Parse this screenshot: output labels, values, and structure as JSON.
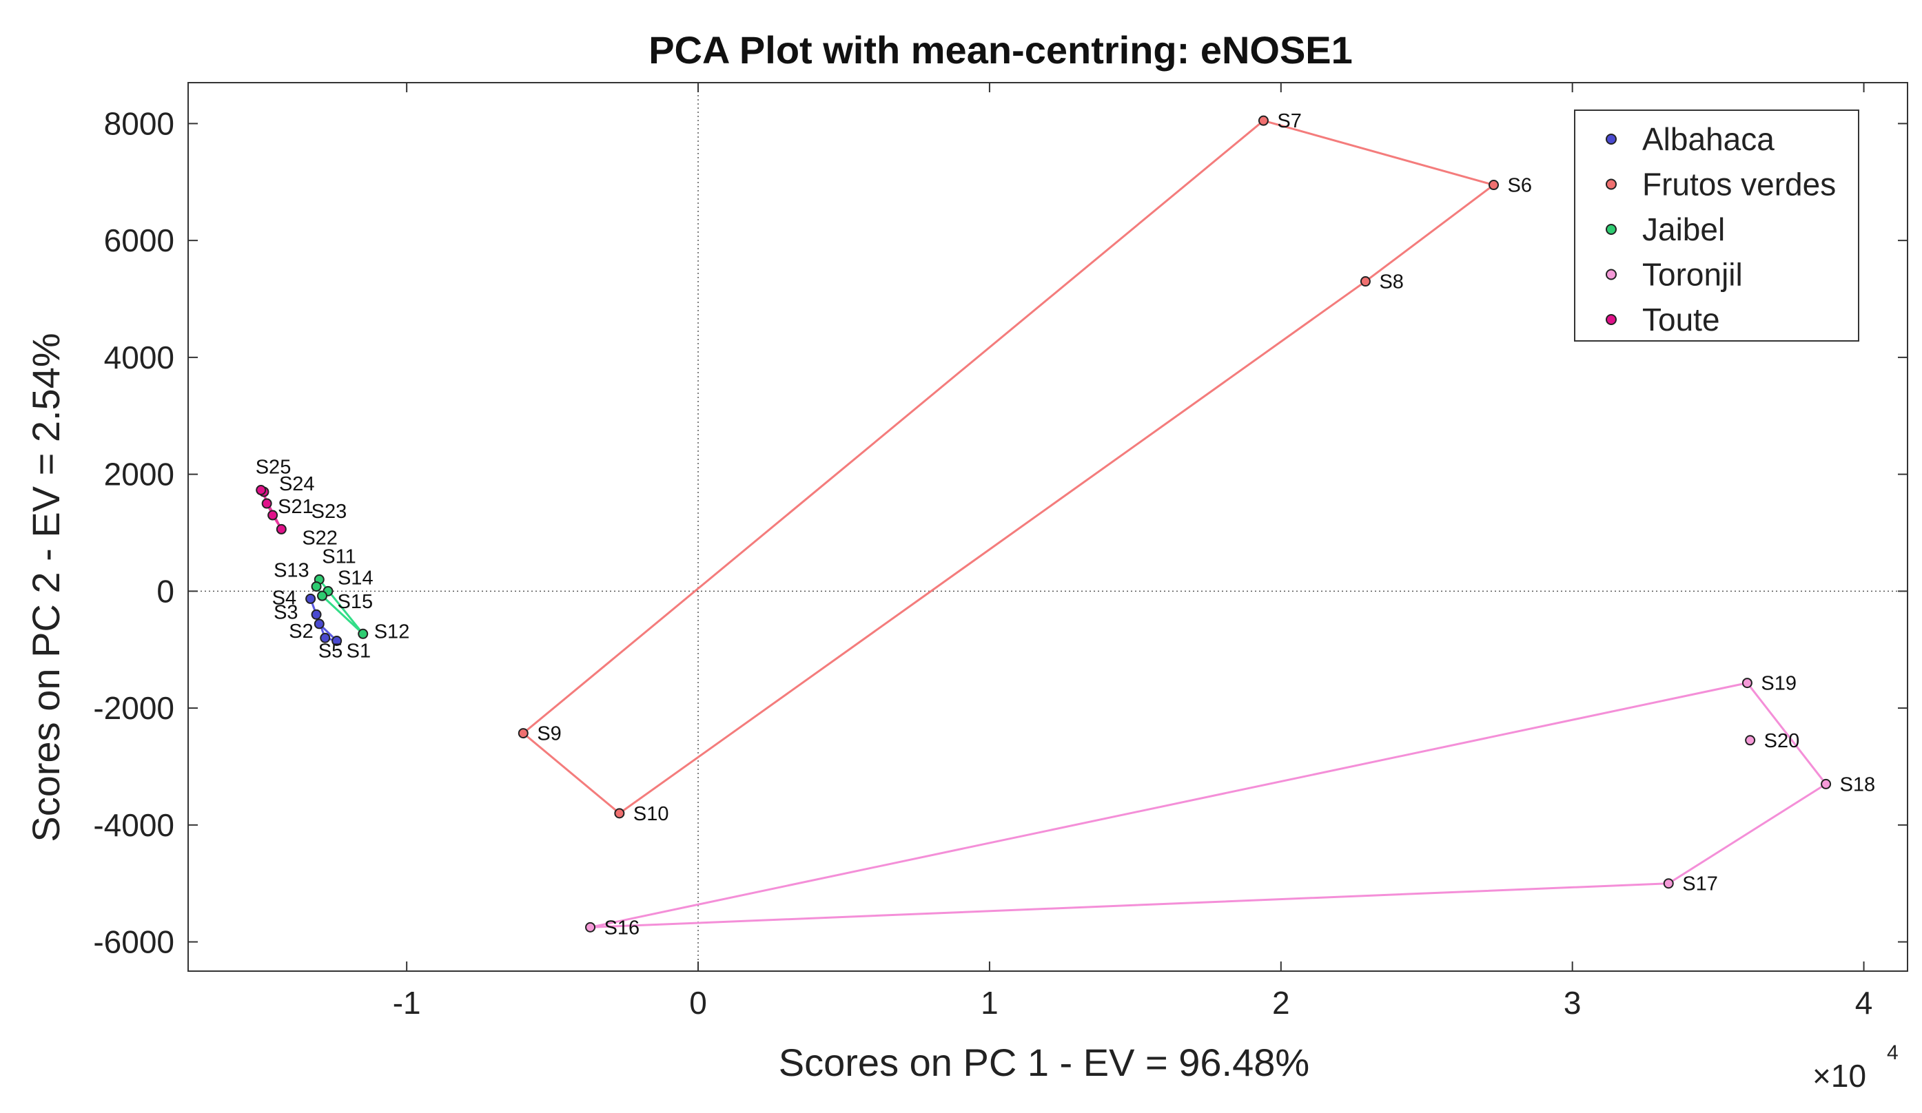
{
  "chart_data": {
    "type": "scatter",
    "title": "PCA Plot with mean-centring: eNOSE1",
    "xlabel": "Scores on PC 1 - EV = 96.48%",
    "ylabel": "Scores on PC 2 - EV = 2.54%",
    "x_multiplier": {
      "base": "×10",
      "exponent": "4"
    },
    "xlim": [
      -1.75,
      4.15
    ],
    "ylim": [
      -6500,
      8700
    ],
    "x_ticks": [
      -1,
      0,
      1,
      2,
      3,
      4
    ],
    "x_tick_labels": [
      "-1",
      "0",
      "1",
      "2",
      "3",
      "4"
    ],
    "y_ticks": [
      -6000,
      -4000,
      -2000,
      0,
      2000,
      4000,
      6000,
      8000
    ],
    "y_tick_labels": [
      "-6000",
      "-4000",
      "-2000",
      "0",
      "2000",
      "4000",
      "6000",
      "8000"
    ],
    "reference_lines": {
      "x": 0,
      "y": 0
    },
    "legend_position": "top-right",
    "series": [
      {
        "name": "Albahaca",
        "color": "#4a4ad0",
        "hull_color": "#5a5ae0",
        "points": [
          {
            "label": "S1",
            "x": -1.24,
            "y": -850
          },
          {
            "label": "S2",
            "x": -1.3,
            "y": -560
          },
          {
            "label": "S3",
            "x": -1.31,
            "y": -400
          },
          {
            "label": "S4",
            "x": -1.33,
            "y": -130
          },
          {
            "label": "S5",
            "x": -1.28,
            "y": -800
          }
        ],
        "hull": [
          "S1",
          "S2",
          "S3",
          "S4",
          "S5"
        ]
      },
      {
        "name": "Frutos verdes",
        "color": "#f07070",
        "hull_color": "#f47c7c",
        "points": [
          {
            "label": "S6",
            "x": 2.73,
            "y": 6950
          },
          {
            "label": "S7",
            "x": 1.94,
            "y": 8050
          },
          {
            "label": "S8",
            "x": 2.29,
            "y": 5300
          },
          {
            "label": "S9",
            "x": -0.6,
            "y": -2430
          },
          {
            "label": "S10",
            "x": -0.27,
            "y": -3800
          }
        ],
        "hull": [
          "S7",
          "S6",
          "S8",
          "S10",
          "S9"
        ]
      },
      {
        "name": "Jaibel",
        "color": "#2ecc71",
        "hull_color": "#33dd88",
        "points": [
          {
            "label": "S11",
            "x": -1.3,
            "y": 200
          },
          {
            "label": "S12",
            "x": -1.15,
            "y": -730
          },
          {
            "label": "S13",
            "x": -1.31,
            "y": 80
          },
          {
            "label": "S14",
            "x": -1.27,
            "y": 0
          },
          {
            "label": "S15",
            "x": -1.29,
            "y": -80
          }
        ],
        "hull": [
          "S11",
          "S12",
          "S15",
          "S13"
        ]
      },
      {
        "name": "Toronjil",
        "color": "#f59ad8",
        "hull_color": "#f48fd8",
        "points": [
          {
            "label": "S16",
            "x": -0.37,
            "y": -5750
          },
          {
            "label": "S17",
            "x": 3.33,
            "y": -5000
          },
          {
            "label": "S18",
            "x": 3.87,
            "y": -3300
          },
          {
            "label": "S19",
            "x": 3.6,
            "y": -1570
          },
          {
            "label": "S20",
            "x": 3.61,
            "y": -2550
          }
        ],
        "hull": [
          "S16",
          "S19",
          "S18",
          "S17"
        ]
      },
      {
        "name": "Toute",
        "color": "#e0118a",
        "hull_color": "#e8389e",
        "points": [
          {
            "label": "S21",
            "x": -1.48,
            "y": 1500
          },
          {
            "label": "S22",
            "x": -1.43,
            "y": 1060
          },
          {
            "label": "S23",
            "x": -1.46,
            "y": 1300
          },
          {
            "label": "S24",
            "x": -1.49,
            "y": 1700
          },
          {
            "label": "S25",
            "x": -1.5,
            "y": 1730
          }
        ],
        "hull": [
          "S25",
          "S24",
          "S21",
          "S23",
          "S22"
        ]
      }
    ]
  }
}
